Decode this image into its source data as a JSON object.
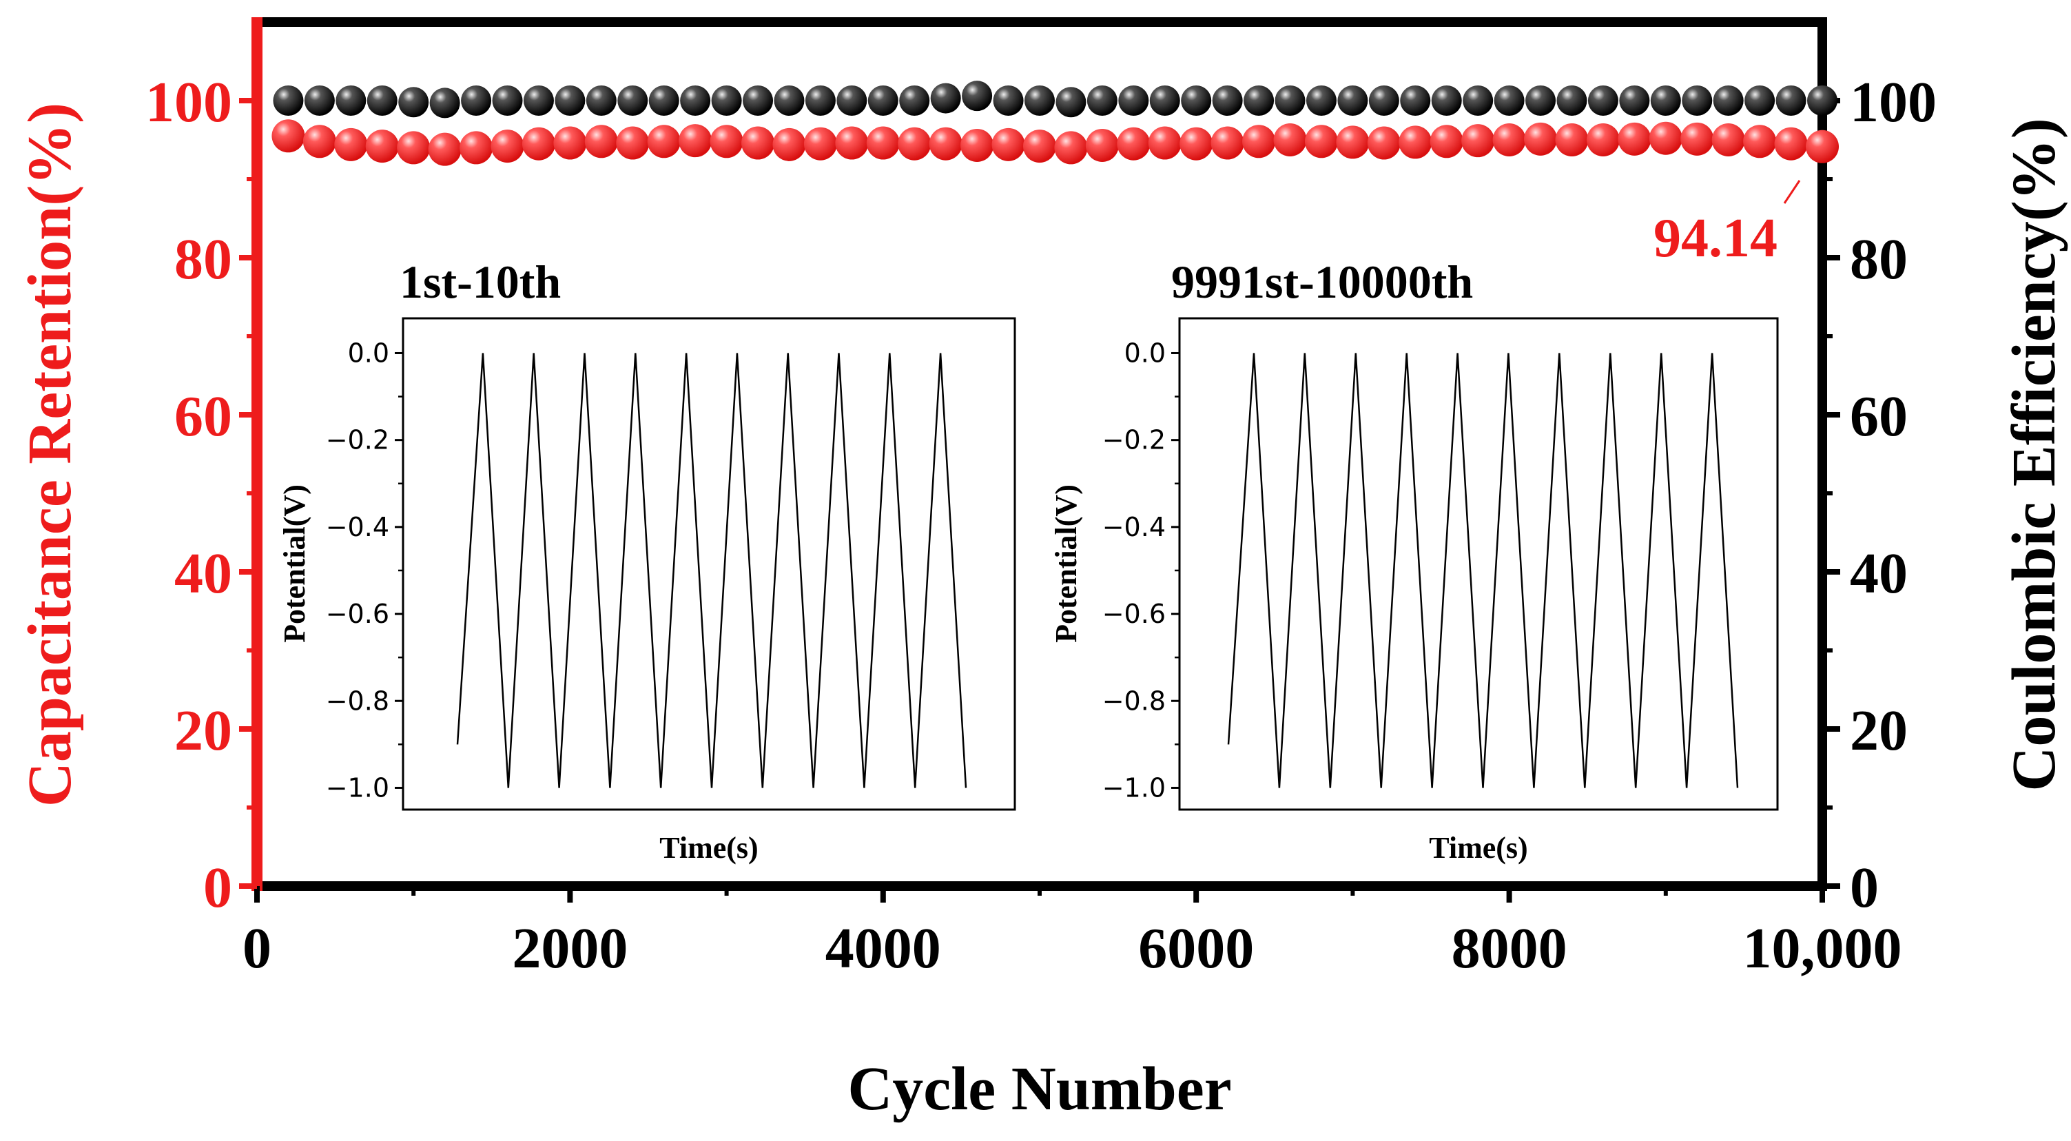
{
  "colors": {
    "left_axis": "#ee1c1c",
    "right_axis": "#000000",
    "retention": "#ee1c1c",
    "efficiency": "#111111",
    "frame": "#000000"
  },
  "chart_data": [
    {
      "id": "main",
      "type": "scatter",
      "xlabel": "Cycle Number",
      "ylabel_left": "Capacitance Retention(%)",
      "ylabel_right": "Coulombic Efficiency(%)",
      "xlim": [
        0,
        10000
      ],
      "ylim_left": [
        0,
        110
      ],
      "ylim_right": [
        0,
        110
      ],
      "x_ticks": [
        0,
        2000,
        4000,
        6000,
        8000,
        10000
      ],
      "x_tick_labels": [
        "0",
        "2000",
        "4000",
        "6000",
        "8000",
        "10,000"
      ],
      "y_ticks_left": [
        0,
        20,
        40,
        60,
        80,
        100
      ],
      "y_tick_labels_left": [
        "0",
        "20",
        "40",
        "60",
        "80",
        "100"
      ],
      "y_ticks_right": [
        0,
        20,
        40,
        60,
        80,
        100
      ],
      "y_tick_labels_right": [
        "0",
        "20",
        "40",
        "60",
        "80",
        "100"
      ],
      "x": [
        200,
        400,
        600,
        800,
        1000,
        1200,
        1400,
        1600,
        1800,
        2000,
        2200,
        2400,
        2600,
        2800,
        3000,
        3200,
        3400,
        3600,
        3800,
        4000,
        4200,
        4400,
        4600,
        4800,
        5000,
        5200,
        5400,
        5600,
        5800,
        6000,
        6200,
        6400,
        6600,
        6800,
        7000,
        7200,
        7400,
        7600,
        7800,
        8000,
        8200,
        8400,
        8600,
        8800,
        9000,
        9200,
        9400,
        9600,
        9800,
        10000
      ],
      "series": [
        {
          "name": "Coulombic Efficiency",
          "axis": "right",
          "values": [
            100,
            100,
            100,
            100,
            99.8,
            99.7,
            100,
            100,
            100,
            100,
            100,
            100,
            100,
            100,
            100,
            100,
            100,
            100,
            100,
            100,
            100,
            100.3,
            100.6,
            100,
            100,
            99.8,
            100,
            100,
            100,
            100,
            100,
            100,
            100,
            100,
            100,
            100,
            100,
            100,
            100,
            100,
            100,
            100,
            100,
            100,
            100,
            100,
            100,
            100,
            100,
            100
          ]
        },
        {
          "name": "Capacitance Retention",
          "axis": "left",
          "values": [
            95.5,
            94.8,
            94.4,
            94.2,
            94.0,
            93.8,
            94.0,
            94.2,
            94.5,
            94.6,
            94.8,
            94.6,
            94.8,
            94.9,
            94.8,
            94.6,
            94.4,
            94.5,
            94.6,
            94.6,
            94.5,
            94.5,
            94.3,
            94.4,
            94.2,
            94.0,
            94.3,
            94.5,
            94.6,
            94.5,
            94.6,
            94.8,
            95.0,
            94.8,
            94.7,
            94.6,
            94.7,
            94.8,
            94.9,
            95.0,
            95.1,
            95.0,
            95.0,
            95.1,
            95.2,
            95.1,
            95.0,
            94.8,
            94.5,
            94.14
          ]
        }
      ],
      "annotation": {
        "text": "94.14",
        "x": 10000,
        "y": 94.14
      }
    },
    {
      "id": "inset-first",
      "type": "line",
      "title": "1st-10th",
      "xlabel": "Time(s)",
      "ylabel": "Potential(V)",
      "ylim": [
        -1.05,
        0.08
      ],
      "y_ticks": [
        0.0,
        -0.2,
        -0.4,
        -0.6,
        -0.8,
        -1.0
      ],
      "y_tick_labels": [
        "0.0",
        "−0.2",
        "−0.4",
        "−0.6",
        "−0.8",
        "−1.0"
      ],
      "cycles": 10,
      "start_potential": -0.9,
      "max_potential": 0.0,
      "min_potential": -1.0
    },
    {
      "id": "inset-last",
      "type": "line",
      "title": "9991st-10000th",
      "xlabel": "Time(s)",
      "ylabel": "Potential(V)",
      "ylim": [
        -1.05,
        0.08
      ],
      "y_ticks": [
        0.0,
        -0.2,
        -0.4,
        -0.6,
        -0.8,
        -1.0
      ],
      "y_tick_labels": [
        "0.0",
        "−0.2",
        "−0.4",
        "−0.6",
        "−0.8",
        "−1.0"
      ],
      "cycles": 10,
      "start_potential": -0.9,
      "max_potential": 0.0,
      "min_potential": -1.0
    }
  ]
}
